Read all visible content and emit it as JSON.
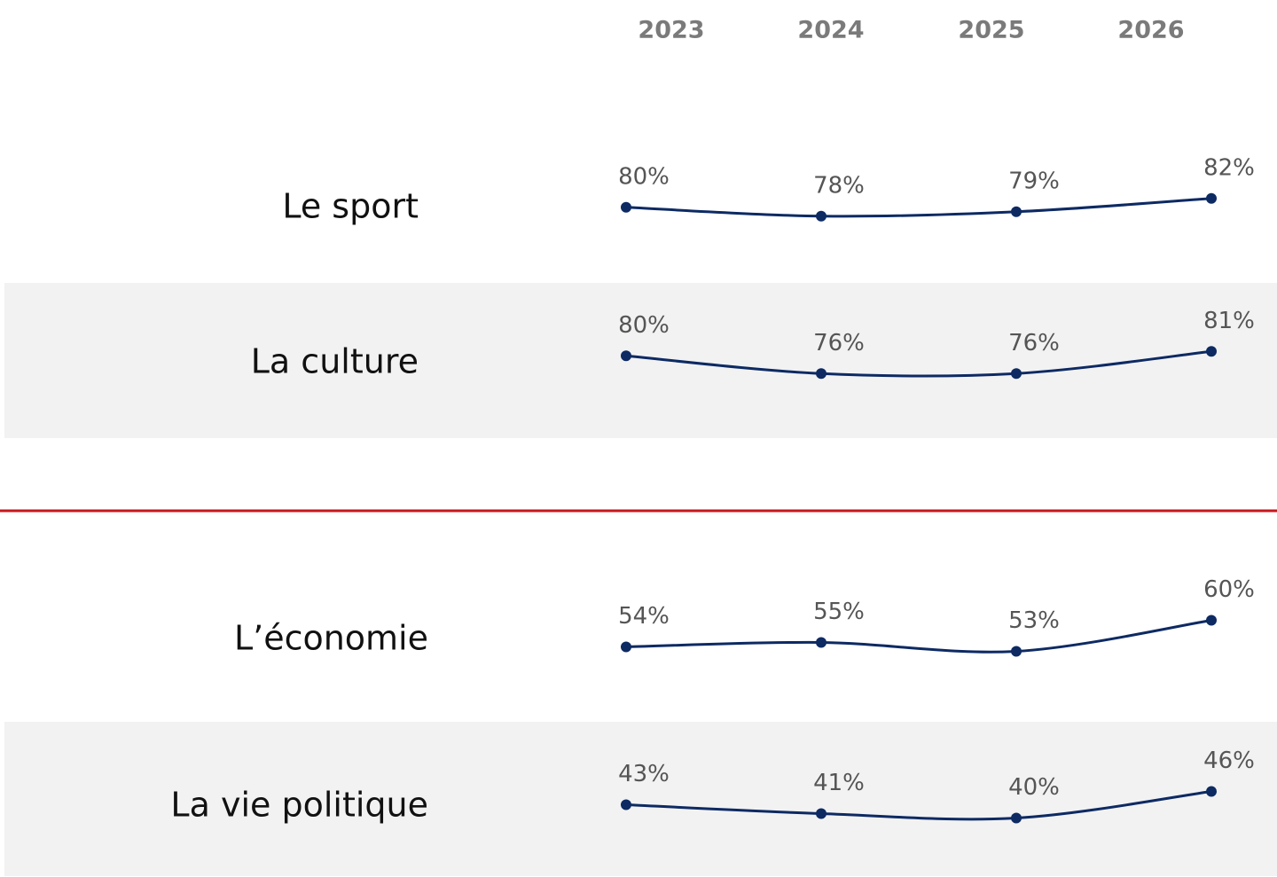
{
  "chart_data": {
    "type": "line",
    "categories": [
      "2023",
      "2024",
      "2025",
      "2026"
    ],
    "series": [
      {
        "name": "Le sport",
        "color": "#0d2a63",
        "values": [
          80,
          78,
          79,
          82
        ],
        "value_labels": [
          "80%",
          "78%",
          "79%",
          "82%"
        ]
      },
      {
        "name": "La culture",
        "color": "#0d2a63",
        "values": [
          80,
          76,
          76,
          81
        ],
        "value_labels": [
          "80%",
          "76%",
          "76%",
          "81%"
        ]
      },
      {
        "name": "L’économie",
        "color": "#0d2a63",
        "values": [
          54,
          55,
          53,
          60
        ],
        "value_labels": [
          "54%",
          "55%",
          "53%",
          "60%"
        ]
      },
      {
        "name": "La vie politique",
        "color": "#0d2a63",
        "values": [
          43,
          41,
          40,
          46
        ],
        "value_labels": [
          "43%",
          "41%",
          "40%",
          "46%"
        ]
      }
    ]
  }
}
